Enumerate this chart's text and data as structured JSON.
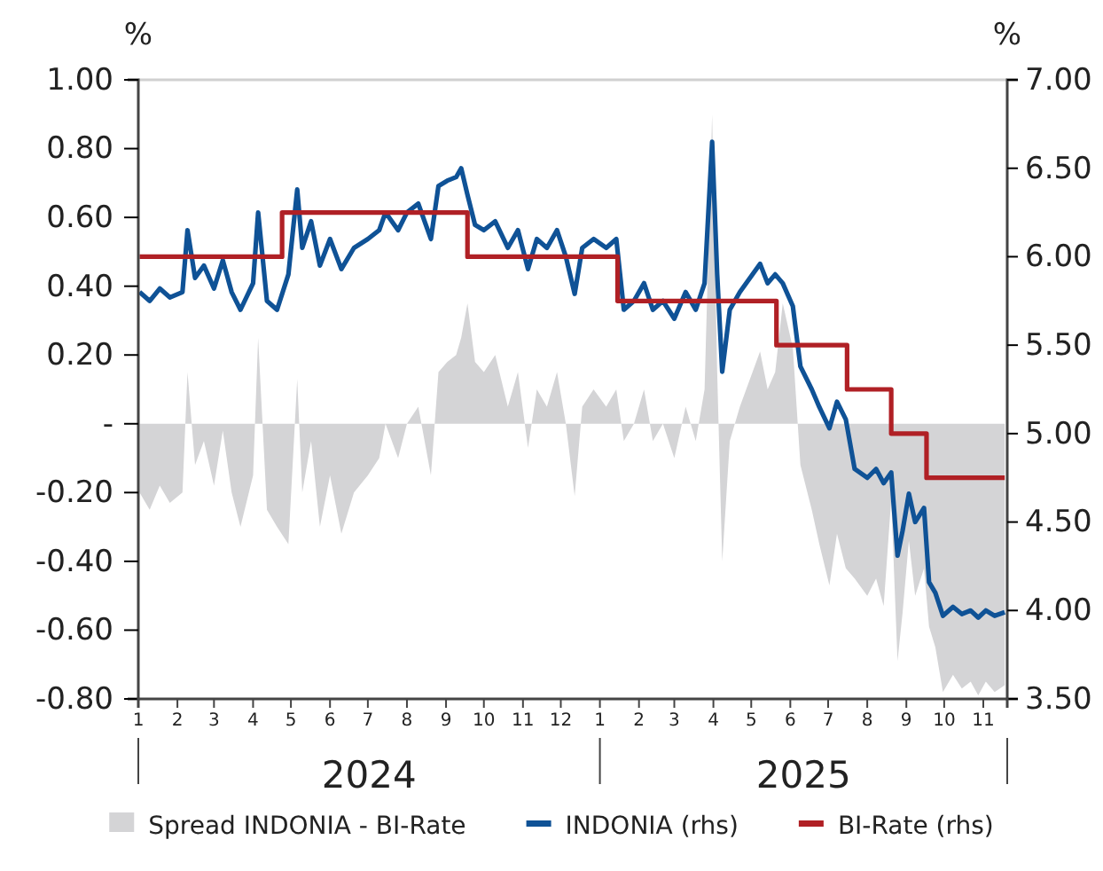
{
  "chart_data": {
    "type": "line",
    "ylabel": "%",
    "y2label": "%",
    "x": [
      "2024-01-02",
      "2024-01-10",
      "2024-01-18",
      "2024-01-26",
      "2024-02-05",
      "2024-02-09",
      "2024-02-15",
      "2024-02-22",
      "2024-03-01",
      "2024-03-08",
      "2024-03-15",
      "2024-03-22",
      "2024-04-01",
      "2024-04-05",
      "2024-04-12",
      "2024-04-20",
      "2024-04-29",
      "2024-05-06",
      "2024-05-10",
      "2024-05-17",
      "2024-05-24",
      "2024-06-01",
      "2024-06-10",
      "2024-06-20",
      "2024-07-01",
      "2024-07-10",
      "2024-07-15",
      "2024-07-25",
      "2024-08-01",
      "2024-08-10",
      "2024-08-20",
      "2024-08-26",
      "2024-09-02",
      "2024-09-09",
      "2024-09-13",
      "2024-09-18",
      "2024-09-24",
      "2024-10-01",
      "2024-10-10",
      "2024-10-20",
      "2024-10-28",
      "2024-11-05",
      "2024-11-12",
      "2024-11-20",
      "2024-11-28",
      "2024-12-05",
      "2024-12-12",
      "2024-12-18",
      "2024-12-27",
      "2025-01-06",
      "2025-01-14",
      "2025-01-20",
      "2025-01-28",
      "2025-02-05",
      "2025-02-12",
      "2025-02-20",
      "2025-03-01",
      "2025-03-10",
      "2025-03-18",
      "2025-03-25",
      "2025-03-31",
      "2025-04-04",
      "2025-04-08",
      "2025-04-14",
      "2025-04-22",
      "2025-05-08",
      "2025-05-14",
      "2025-05-20",
      "2025-05-26",
      "2025-06-03",
      "2025-06-09",
      "2025-06-18",
      "2025-06-24",
      "2025-07-02",
      "2025-07-08",
      "2025-07-15",
      "2025-07-22",
      "2025-08-01",
      "2025-08-08",
      "2025-08-14",
      "2025-08-20",
      "2025-08-25",
      "2025-08-29",
      "2025-09-03",
      "2025-09-08",
      "2025-09-15",
      "2025-09-19",
      "2025-09-24",
      "2025-09-30",
      "2025-10-08",
      "2025-10-15",
      "2025-10-22",
      "2025-10-28",
      "2025-11-03",
      "2025-11-10",
      "2025-11-18"
    ],
    "series": [
      {
        "name": "Spread INDONIA - BI-Rate",
        "type": "area",
        "color": "#d4d4d6",
        "values": [
          -0.2,
          -0.25,
          -0.18,
          -0.23,
          -0.2,
          0.15,
          -0.12,
          -0.05,
          -0.18,
          -0.02,
          -0.2,
          -0.3,
          -0.15,
          0.25,
          -0.25,
          -0.3,
          -0.35,
          0.13,
          -0.2,
          -0.05,
          -0.3,
          -0.15,
          -0.32,
          -0.2,
          -0.15,
          -0.1,
          0.0,
          -0.1,
          0.0,
          0.05,
          -0.15,
          0.15,
          0.18,
          0.2,
          0.25,
          0.35,
          0.18,
          0.15,
          0.2,
          0.05,
          0.15,
          -0.07,
          0.1,
          0.05,
          0.15,
          0.0,
          -0.21,
          0.05,
          0.1,
          0.05,
          0.1,
          -0.05,
          0.0,
          0.1,
          -0.05,
          0.0,
          -0.1,
          0.05,
          -0.05,
          0.1,
          0.9,
          0.15,
          -0.4,
          -0.05,
          0.05,
          0.21,
          0.1,
          0.15,
          0.35,
          0.22,
          -0.12,
          -0.25,
          -0.35,
          -0.47,
          -0.32,
          -0.42,
          -0.45,
          -0.5,
          -0.45,
          -0.53,
          -0.22,
          -0.69,
          -0.55,
          -0.34,
          -0.5,
          -0.42,
          -0.59,
          -0.65,
          -0.78,
          -0.73,
          -0.77,
          -0.75,
          -0.79,
          -0.75,
          -0.78,
          -0.76
        ]
      },
      {
        "name": "INDONIA (rhs)",
        "axis": "y2",
        "color": "#0f5296",
        "values": [
          5.8,
          5.75,
          5.82,
          5.77,
          5.8,
          6.15,
          5.88,
          5.95,
          5.82,
          5.98,
          5.8,
          5.7,
          5.85,
          6.25,
          5.75,
          5.7,
          5.9,
          6.38,
          6.05,
          6.2,
          5.95,
          6.1,
          5.93,
          6.05,
          6.1,
          6.15,
          6.25,
          6.15,
          6.25,
          6.3,
          6.1,
          6.4,
          6.43,
          6.45,
          6.5,
          6.35,
          6.18,
          6.15,
          6.2,
          6.05,
          6.15,
          5.93,
          6.1,
          6.05,
          6.15,
          6.0,
          5.79,
          6.05,
          6.1,
          6.05,
          6.1,
          5.7,
          5.75,
          5.85,
          5.7,
          5.75,
          5.65,
          5.8,
          5.7,
          5.85,
          6.65,
          5.9,
          5.35,
          5.7,
          5.8,
          5.96,
          5.85,
          5.9,
          5.85,
          5.72,
          5.38,
          5.25,
          5.15,
          5.03,
          5.18,
          5.08,
          4.8,
          4.75,
          4.8,
          4.72,
          4.78,
          4.31,
          4.45,
          4.66,
          4.5,
          4.58,
          4.16,
          4.1,
          3.97,
          4.02,
          3.98,
          4.0,
          3.96,
          4.0,
          3.97,
          3.99
        ]
      },
      {
        "name": "BI-Rate (rhs)",
        "type": "step",
        "axis": "y2",
        "color": "#b02025",
        "x": [
          "2024-01-02",
          "2024-04-24",
          "2024-09-18",
          "2025-01-15",
          "2025-05-21",
          "2025-07-16",
          "2025-08-20",
          "2025-09-17",
          "2025-11-18"
        ],
        "values": [
          6.0,
          6.25,
          6.0,
          5.75,
          5.5,
          5.25,
          5.0,
          4.75,
          4.75
        ]
      }
    ],
    "xlim": [
      "2024-01-01",
      "2025-11-20"
    ],
    "xticks": [
      {
        "value": "2024-01-01",
        "label": "1"
      },
      {
        "value": "2024-02-01",
        "label": "2"
      },
      {
        "value": "2024-03-01",
        "label": "3"
      },
      {
        "value": "2024-04-01",
        "label": "4"
      },
      {
        "value": "2024-05-01",
        "label": "5"
      },
      {
        "value": "2024-06-01",
        "label": "6"
      },
      {
        "value": "2024-07-01",
        "label": "7"
      },
      {
        "value": "2024-08-01",
        "label": "8"
      },
      {
        "value": "2024-09-01",
        "label": "9"
      },
      {
        "value": "2024-10-01",
        "label": "10"
      },
      {
        "value": "2024-11-01",
        "label": "11"
      },
      {
        "value": "2024-12-01",
        "label": "12"
      },
      {
        "value": "2025-01-01",
        "label": "1"
      },
      {
        "value": "2025-02-01",
        "label": "2"
      },
      {
        "value": "2025-03-01",
        "label": "3"
      },
      {
        "value": "2025-04-01",
        "label": "4"
      },
      {
        "value": "2025-05-01",
        "label": "5"
      },
      {
        "value": "2025-06-01",
        "label": "6"
      },
      {
        "value": "2025-07-01",
        "label": "7"
      },
      {
        "value": "2025-08-01",
        "label": "8"
      },
      {
        "value": "2025-09-01",
        "label": "9"
      },
      {
        "value": "2025-10-01",
        "label": "10"
      },
      {
        "value": "2025-11-01",
        "label": "11"
      }
    ],
    "ylim": [
      -0.8,
      1.0
    ],
    "yticks": [
      {
        "value": -0.8,
        "label": "-0.80"
      },
      {
        "value": -0.6,
        "label": "-0.60"
      },
      {
        "value": -0.4,
        "label": "-0.40"
      },
      {
        "value": -0.2,
        "label": "-0.20"
      },
      {
        "value": 0,
        "label": "-"
      },
      {
        "value": 0.2,
        "label": "0.20"
      },
      {
        "value": 0.4,
        "label": "0.40"
      },
      {
        "value": 0.6,
        "label": "0.60"
      },
      {
        "value": 0.8,
        "label": "0.80"
      },
      {
        "value": 1.0,
        "label": "1.00"
      }
    ],
    "y2lim": [
      3.5,
      7.0
    ],
    "y2ticks": [
      {
        "value": 3.5,
        "label": "3.50"
      },
      {
        "value": 4.0,
        "label": "4.00"
      },
      {
        "value": 4.5,
        "label": "4.50"
      },
      {
        "value": 5.0,
        "label": "5.00"
      },
      {
        "value": 5.5,
        "label": "5.50"
      },
      {
        "value": 6.0,
        "label": "6.00"
      },
      {
        "value": 6.5,
        "label": "6.50"
      },
      {
        "value": 7.0,
        "label": "7.00"
      }
    ],
    "annotations": [
      "2024",
      "2025"
    ],
    "legend": "bottom",
    "grid": false
  }
}
